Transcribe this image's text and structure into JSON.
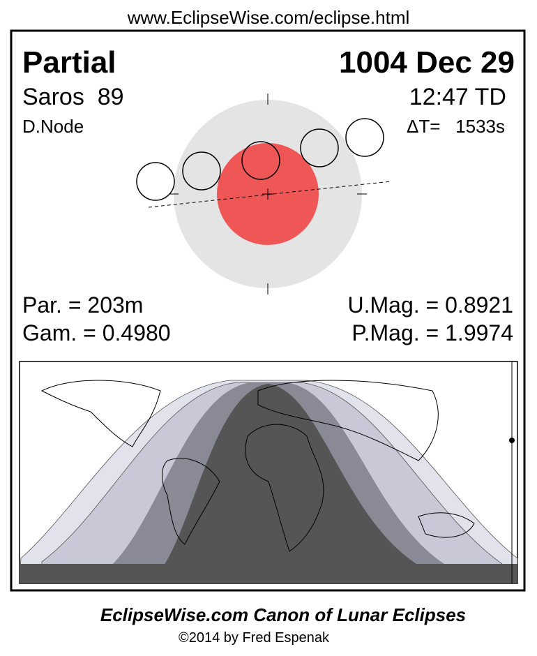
{
  "header": {
    "url": "www.EclipseWise.com/eclipse.html"
  },
  "eclipse": {
    "type": "Partial",
    "date": "1004 Dec 29",
    "saros": "Saros  89",
    "time": "12:47 TD",
    "node": "D.Node",
    "delta_t": "ΔT=   1533s",
    "duration": "Par. = 203m",
    "umbral_magnitude": "U.Mag. = 0.8921",
    "gamma": "Gam. = 0.4980",
    "penumbral_magnitude": "P.Mag. = 1.9974"
  },
  "footer": {
    "title": "EclipseWise.com Canon of Lunar Eclipses",
    "copyright": "©2014 by Fred Espenak"
  }
}
